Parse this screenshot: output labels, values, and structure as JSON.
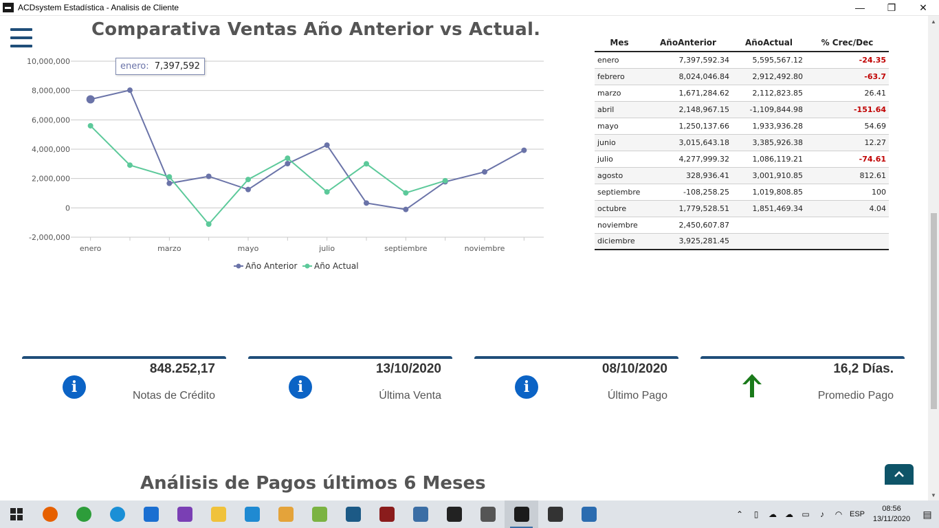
{
  "window": {
    "title": "ACDsystem Estadística - Analisis de Cliente",
    "minimize": "—",
    "maximize": "❐",
    "close": "✕"
  },
  "chart_title": "Comparativa Ventas Año Anterior vs Actual.",
  "chart_data": {
    "type": "line",
    "categories": [
      "enero",
      "febrero",
      "marzo",
      "abril",
      "mayo",
      "junio",
      "julio",
      "agosto",
      "septiembre",
      "octubre",
      "noviembre",
      "diciembre"
    ],
    "x_tick_labels": [
      "enero",
      "marzo",
      "mayo",
      "julio",
      "septiembre",
      "noviembre"
    ],
    "y_tick_labels": [
      "10,000,000",
      "8,000,000",
      "6,000,000",
      "4,000,000",
      "2,000,000",
      "0",
      "-2,000,000"
    ],
    "ylim": [
      -2000000,
      10000000
    ],
    "grid": true,
    "legend_placement": "bottom-center",
    "series": [
      {
        "name": "Año Anterior",
        "color": "#6a73a8",
        "values": [
          7397592.34,
          8024046.84,
          1671284.62,
          2148967.15,
          1250137.66,
          3015643.18,
          4277999.32,
          328936.41,
          -108258.25,
          1779528.51,
          2450607.87,
          3925281.45
        ]
      },
      {
        "name": "Año Actual",
        "color": "#5cc99a",
        "values": [
          5595567.12,
          2912492.8,
          2112823.85,
          -1109844.98,
          1933936.28,
          3385926.38,
          1086119.21,
          3001910.85,
          1019808.85,
          1851469.34,
          null,
          null
        ]
      }
    ],
    "tooltip": {
      "label": "enero:",
      "value": "7,397,592"
    }
  },
  "table": {
    "headers": [
      "Mes",
      "AñoAnterior",
      "AñoActual",
      "% Crec/Dec"
    ],
    "rows": [
      [
        "enero",
        "7,397,592.34",
        "5,595,567.12",
        "-24.35"
      ],
      [
        "febrero",
        "8,024,046.84",
        "2,912,492.80",
        "-63.7"
      ],
      [
        "marzo",
        "1,671,284.62",
        "2,112,823.85",
        "26.41"
      ],
      [
        "abril",
        "2,148,967.15",
        "-1,109,844.98",
        "-151.64"
      ],
      [
        "mayo",
        "1,250,137.66",
        "1,933,936.28",
        "54.69"
      ],
      [
        "junio",
        "3,015,643.18",
        "3,385,926.38",
        "12.27"
      ],
      [
        "julio",
        "4,277,999.32",
        "1,086,119.21",
        "-74.61"
      ],
      [
        "agosto",
        "328,936.41",
        "3,001,910.85",
        "812.61"
      ],
      [
        "septiembre",
        "-108,258.25",
        "1,019,808.85",
        "100"
      ],
      [
        "octubre",
        "1,779,528.51",
        "1,851,469.34",
        "4.04"
      ],
      [
        "noviembre",
        "2,450,607.87",
        "",
        ""
      ],
      [
        "diciembre",
        "3,925,281.45",
        "",
        ""
      ]
    ],
    "negative_color": "#c00000"
  },
  "cards": [
    {
      "value": "848.252,17",
      "label": "Notas de Crédito",
      "icon": "info-icon"
    },
    {
      "value": "13/10/2020",
      "label": "Última Venta",
      "icon": "info-icon"
    },
    {
      "value": "08/10/2020",
      "label": "Último Pago",
      "icon": "info-icon"
    },
    {
      "value": "16,2 Días.",
      "label": "Promedio Pago",
      "icon": "arrow-up-icon"
    }
  ],
  "section_title": "Análisis de Pagos últimos 6 Meses",
  "colors": {
    "accent": "#1f4e79",
    "info": "#0b63c5",
    "arrow": "#1a7a1a",
    "back_to_top": "#0e5468"
  },
  "taskbar": {
    "icons": [
      "windows-start-icon",
      "firefox-icon",
      "chrome-icon",
      "edge-icon",
      "maps-icon",
      "visual-studio-icon",
      "file-explorer-icon",
      "vscode-icon",
      "git-icon",
      "notepad-plus-icon",
      "mysql-workbench-icon",
      "sql-tool-icon",
      "virtualbox-icon",
      "terminal-icon",
      "xampp-icon",
      "acdsystem-icon",
      "settings-icon",
      "calculator-icon"
    ],
    "language": "ESP",
    "time": "08:56",
    "date": "13/11/2020"
  }
}
